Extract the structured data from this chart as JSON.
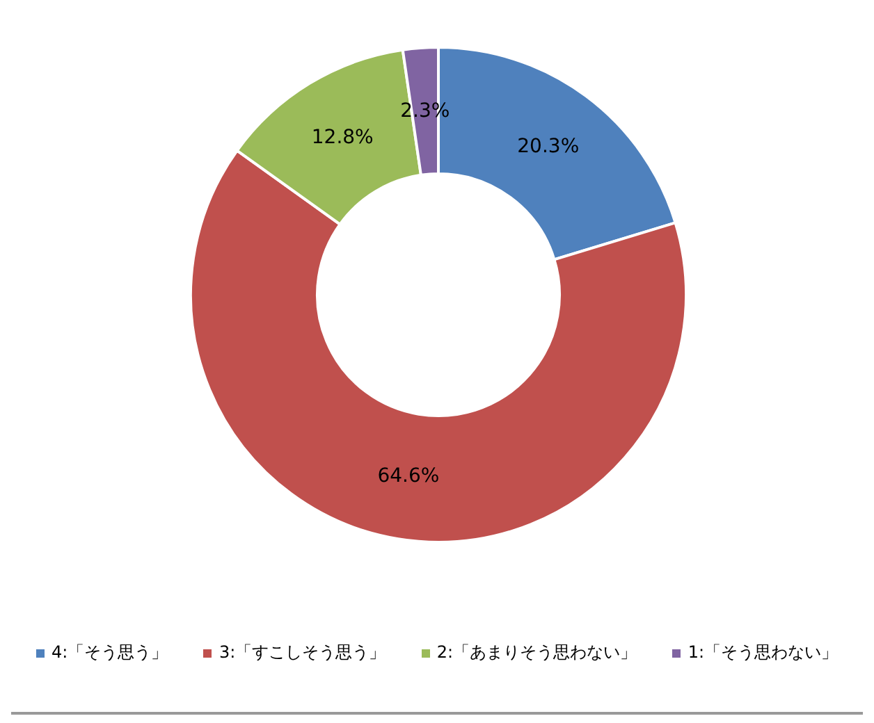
{
  "chart_data": {
    "type": "donut",
    "categories": [
      "4:「そう思う」",
      "3:「すこしそう思う」",
      "2:「あまりそう思わない」",
      "1:「そう思わない」"
    ],
    "values": [
      20.3,
      64.6,
      12.8,
      2.3
    ],
    "colors": [
      "#4f81bd",
      "#c0504d",
      "#9bbb59",
      "#8064a2"
    ],
    "value_labels": [
      "20.3%",
      "64.6%",
      "12.8%",
      "2.3%"
    ],
    "legend": "bottom"
  }
}
